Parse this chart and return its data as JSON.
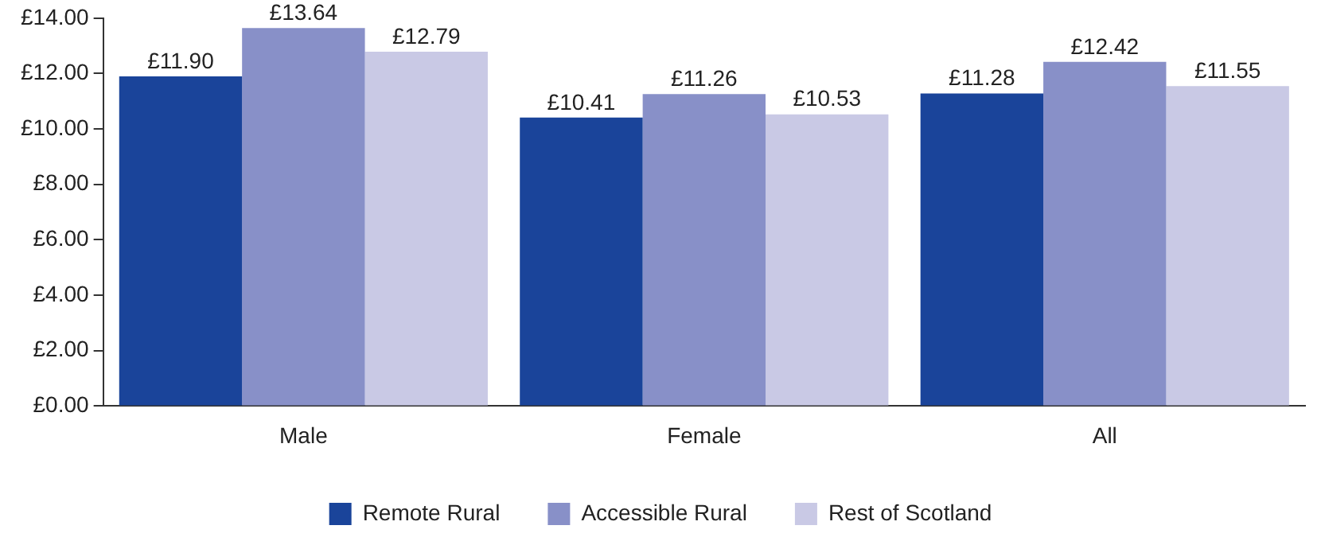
{
  "chart_data": {
    "type": "bar",
    "categories": [
      "Male",
      "Female",
      "All"
    ],
    "series": [
      {
        "name": "Remote Rural",
        "color": "#1a449a",
        "values": [
          11.9,
          10.41,
          11.28
        ],
        "value_labels": [
          "£11.90",
          "£10.41",
          "£11.28"
        ]
      },
      {
        "name": "Accessible Rural",
        "color": "#8890c8",
        "values": [
          13.64,
          11.26,
          12.42
        ],
        "value_labels": [
          "£13.64",
          "£11.26",
          "£12.42"
        ]
      },
      {
        "name": "Rest of Scotland",
        "color": "#c9c9e5",
        "values": [
          12.79,
          10.53,
          11.55
        ],
        "value_labels": [
          "£12.79",
          "£10.53",
          "£11.55"
        ]
      }
    ],
    "ylim": [
      0,
      14
    ],
    "yticks": [
      {
        "value": 0,
        "label": "£0.00"
      },
      {
        "value": 2,
        "label": "£2.00"
      },
      {
        "value": 4,
        "label": "£4.00"
      },
      {
        "value": 6,
        "label": "£6.00"
      },
      {
        "value": 8,
        "label": "£8.00"
      },
      {
        "value": 10,
        "label": "£10.00"
      },
      {
        "value": 12,
        "label": "£12.00"
      },
      {
        "value": 14,
        "label": "£14.00"
      }
    ],
    "grid": false,
    "legend": "bottom"
  }
}
